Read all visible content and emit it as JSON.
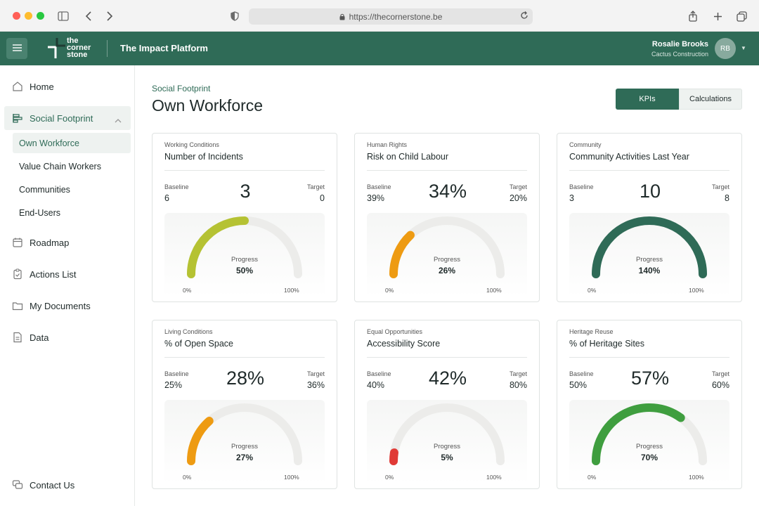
{
  "browser": {
    "url": "https://thecornerstone.be"
  },
  "header": {
    "logo_text": [
      "the",
      "corner",
      "stone"
    ],
    "platform_title": "The Impact Platform",
    "user_name": "Rosalie Brooks",
    "user_company": "Cactus Construction",
    "user_initials": "RB"
  },
  "sidebar": {
    "home": "Home",
    "social_footprint": "Social Footprint",
    "sub_items": [
      "Own Workforce",
      "Value Chain Workers",
      "Communities",
      "End-Users"
    ],
    "roadmap": "Roadmap",
    "actions_list": "Actions List",
    "my_documents": "My Documents",
    "data": "Data",
    "contact_us": "Contact Us"
  },
  "main": {
    "breadcrumb": "Social Footprint",
    "title": "Own Workforce",
    "tabs": {
      "kpis": "KPIs",
      "calculations": "Calculations"
    },
    "labels": {
      "baseline": "Baseline",
      "target": "Target",
      "progress": "Progress",
      "min": "0%",
      "max": "100%"
    }
  },
  "cards": [
    {
      "category": "Working Conditions",
      "title": "Number of Incidents",
      "baseline": "6",
      "current": "3",
      "target": "0",
      "progress": 0.5,
      "progress_text": "50%",
      "color": "#b5c233"
    },
    {
      "category": "Human Rights",
      "title": "Risk on Child Labour",
      "baseline": "39%",
      "current": "34%",
      "target": "20%",
      "progress": 0.26,
      "progress_text": "26%",
      "color": "#ee9b12"
    },
    {
      "category": "Community",
      "title": "Community Activities Last Year",
      "baseline": "3",
      "current": "10",
      "target": "8",
      "progress": 1.4,
      "progress_text": "140%",
      "color": "#2f6b57"
    },
    {
      "category": "Living Conditions",
      "title": "% of Open Space",
      "baseline": "25%",
      "current": "28%",
      "target": "36%",
      "progress": 0.27,
      "progress_text": "27%",
      "color": "#ee9b12"
    },
    {
      "category": "Equal Opportunities",
      "title": "Accessibility Score",
      "baseline": "40%",
      "current": "42%",
      "target": "80%",
      "progress": 0.05,
      "progress_text": "5%",
      "color": "#e03a36"
    },
    {
      "category": "Heritage Reuse",
      "title": "% of Heritage Sites",
      "baseline": "50%",
      "current": "57%",
      "target": "60%",
      "progress": 0.7,
      "progress_text": "70%",
      "color": "#3f9e3f"
    }
  ]
}
